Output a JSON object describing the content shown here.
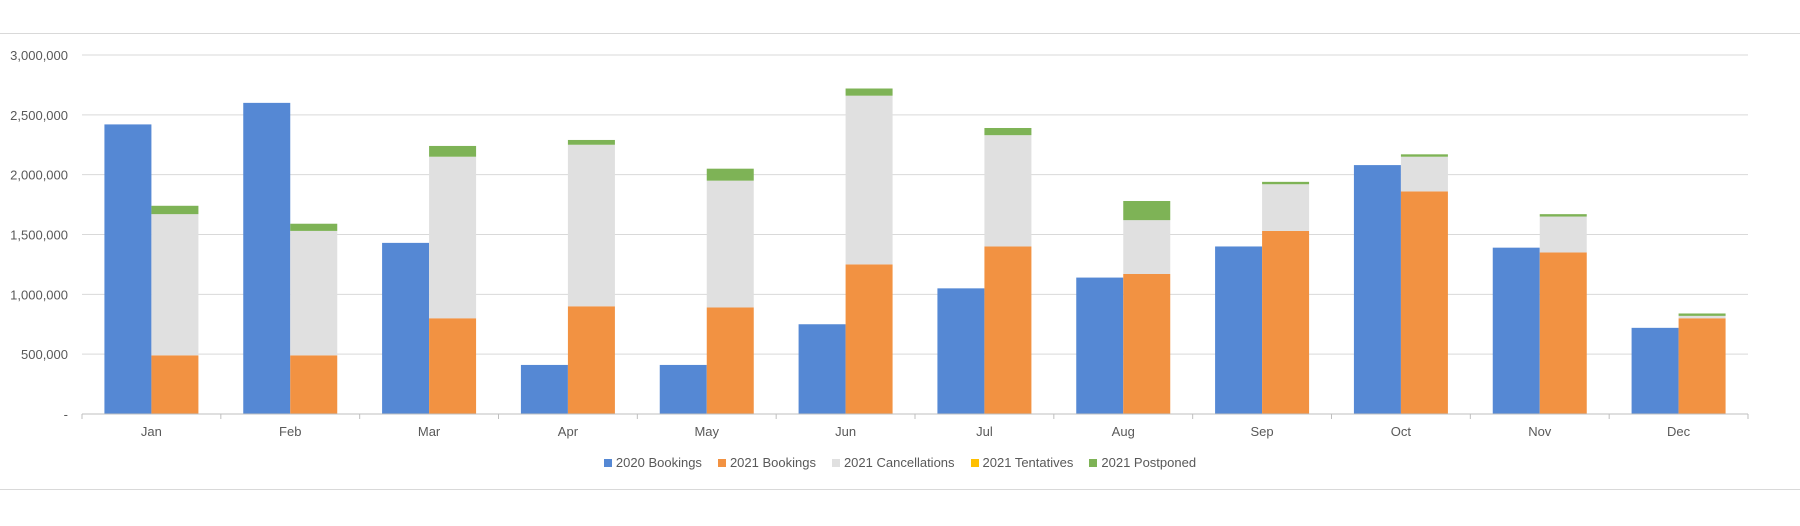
{
  "chart_data": {
    "type": "bar",
    "stacked_second_column": true,
    "categories": [
      "Jan",
      "Feb",
      "Mar",
      "Apr",
      "May",
      "Jun",
      "Jul",
      "Aug",
      "Sep",
      "Oct",
      "Nov",
      "Dec"
    ],
    "y_tick_labels": [
      "-",
      "500,000",
      "1,000,000",
      "1,500,000",
      "2,000,000",
      "2,500,000",
      "3,000,000"
    ],
    "ylim": [
      0,
      3000000
    ],
    "grid": true,
    "legend_position": "bottom",
    "series": [
      {
        "name": "2020 Bookings",
        "color": "#5588D4",
        "stack": "left",
        "values": [
          2420000,
          2600000,
          1430000,
          410000,
          410000,
          750000,
          1050000,
          1140000,
          1400000,
          2080000,
          1390000,
          720000
        ]
      },
      {
        "name": "2021 Bookings",
        "color": "#F29242",
        "stack": "right",
        "values": [
          490000,
          490000,
          800000,
          900000,
          890000,
          1250000,
          1400000,
          1170000,
          1530000,
          1860000,
          1350000,
          800000
        ]
      },
      {
        "name": "2021 Cancellations",
        "color": "#E0E0E0",
        "stack": "right",
        "values": [
          1180000,
          1040000,
          1350000,
          1350000,
          1060000,
          1410000,
          930000,
          450000,
          390000,
          290000,
          300000,
          20000
        ]
      },
      {
        "name": "2021 Tentatives",
        "color": "#FFC000",
        "stack": "right",
        "values": [
          0,
          0,
          0,
          0,
          0,
          0,
          0,
          0,
          0,
          0,
          0,
          0
        ]
      },
      {
        "name": "2021 Postponed",
        "color": "#7EB356",
        "stack": "right",
        "values": [
          70000,
          60000,
          90000,
          40000,
          100000,
          60000,
          60000,
          160000,
          20000,
          20000,
          20000,
          20000
        ]
      }
    ]
  }
}
